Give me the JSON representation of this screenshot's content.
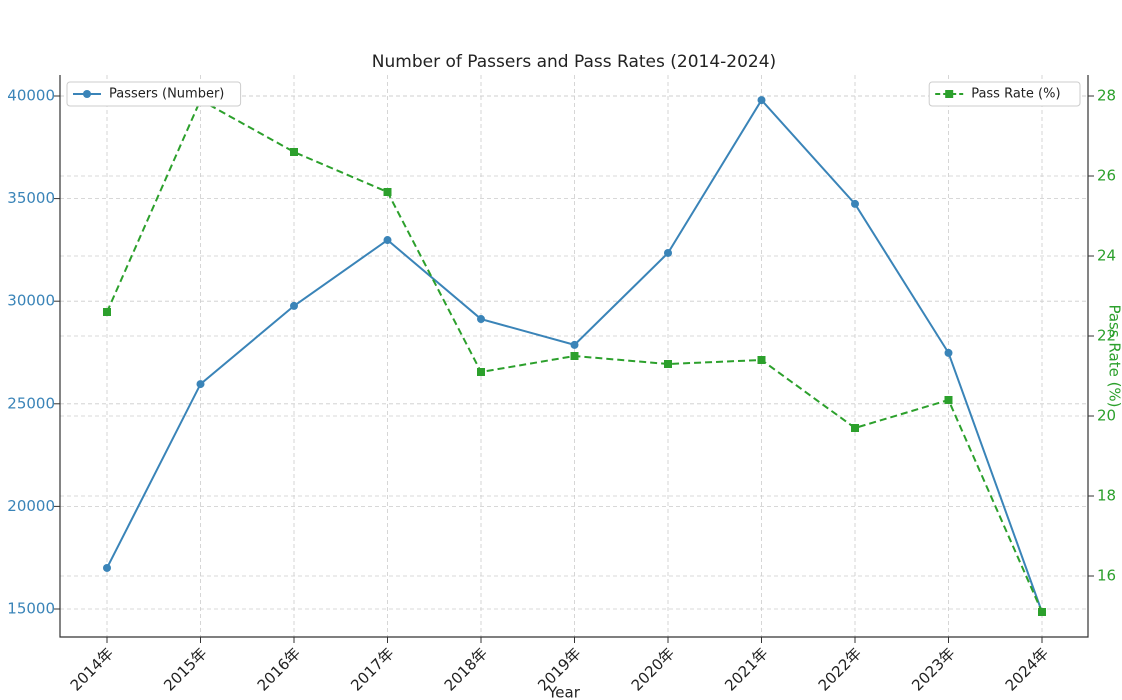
{
  "chart_data": {
    "type": "line",
    "title": "Number of Passers and Pass Rates (2014-2024)",
    "x_label": "Year",
    "y2_label": "Pass Rate (%)",
    "categories": [
      "2014年",
      "2015年",
      "2016年",
      "2017年",
      "2018年",
      "2019年",
      "2020年",
      "2021年",
      "2022年",
      "2023年",
      "2024年"
    ],
    "series": [
      {
        "name": "Passers (Number)",
        "color": "#3a84b8",
        "axis": "y",
        "marker": "circle",
        "linestyle": "solid",
        "legend": "upper left",
        "values": [
          17000,
          25960,
          29770,
          32980,
          29130,
          27870,
          32350,
          39800,
          34740,
          27480,
          14850
        ]
      },
      {
        "name": "Pass Rate (%)",
        "color": "#2ca02c",
        "axis": "y2",
        "marker": "square",
        "linestyle": "dashed",
        "legend": "upper right",
        "values": [
          22.6,
          27.9,
          26.6,
          25.6,
          21.1,
          21.5,
          21.3,
          21.4,
          19.7,
          20.4,
          15.1
        ]
      }
    ],
    "ylim": [
      13635,
      41023
    ],
    "yticks": [
      15000,
      20000,
      25000,
      30000,
      35000,
      40000
    ],
    "y2lim": [
      14.475,
      28.525
    ],
    "y2ticks": [
      16,
      18,
      20,
      22,
      24,
      26,
      28
    ],
    "grid": true
  }
}
